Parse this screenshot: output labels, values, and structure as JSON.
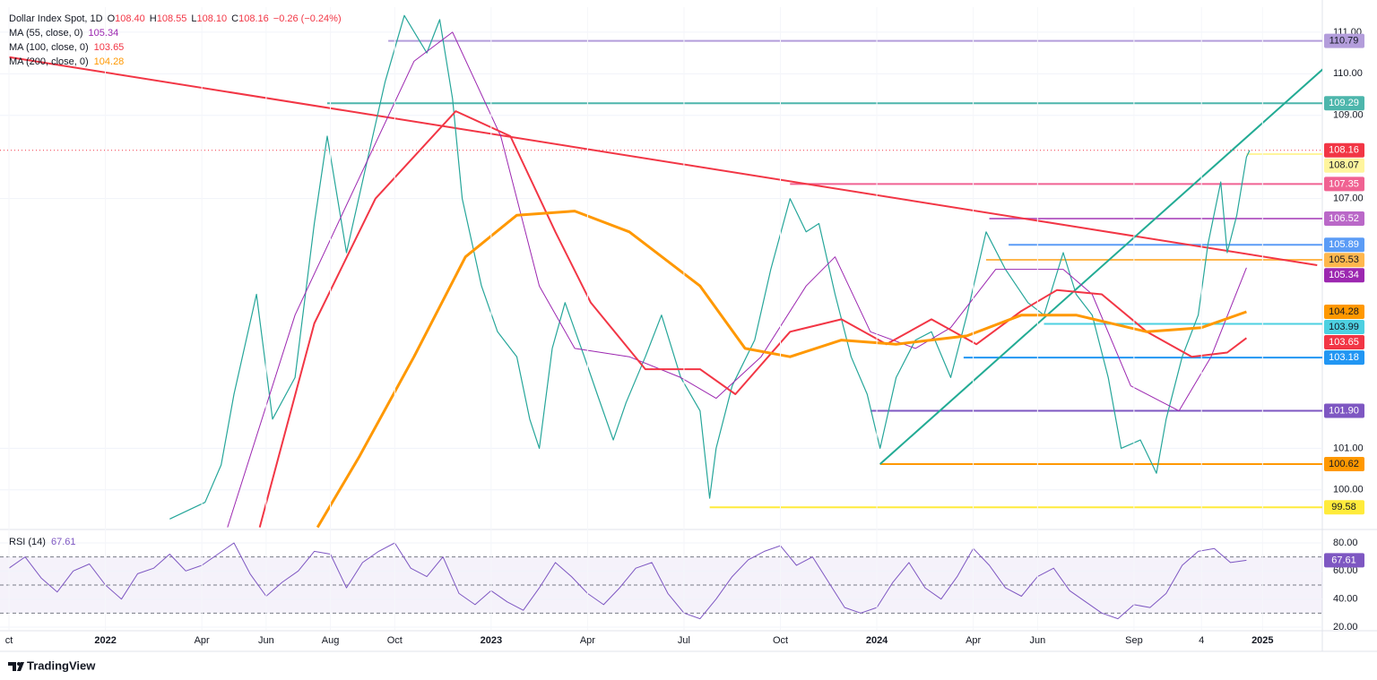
{
  "chart_data": [
    {
      "type": "line",
      "title": "Dollar Index Spot, 1D",
      "ohlc": [
        "O",
        "108.40",
        "H",
        "108.55",
        "L",
        "108.10",
        "C",
        "108.16",
        "−0.26 (−0.24%)"
      ],
      "xlim": [
        -0.28,
        40.86
      ],
      "ylim": [
        99.07,
        111.6
      ],
      "yticks": [
        {
          "value": 111,
          "label": "111.00"
        },
        {
          "value": 110,
          "label": "110.00"
        },
        {
          "value": 109,
          "label": "109.00"
        },
        {
          "value": 107,
          "label": "107.00"
        },
        {
          "value": 101,
          "label": "101.00"
        },
        {
          "value": 100,
          "label": "100.00"
        }
      ],
      "series": [
        {
          "name": "Dollar Index Spot",
          "color": "#26a69a",
          "label": "108.16",
          "label_color": "#f23645",
          "x": [
            5.0,
            6.1,
            6.6,
            7.0,
            7.7,
            8.2,
            8.9,
            9.5,
            9.9,
            10.5,
            11.2,
            11.7,
            12.3,
            13.0,
            13.4,
            13.8,
            14.1,
            14.7,
            15.2,
            15.8,
            16.2,
            16.5,
            16.9,
            17.3,
            17.9,
            18.3,
            18.8,
            19.2,
            19.8,
            20.3,
            20.9,
            21.5,
            21.8,
            22.0,
            22.5,
            23.2,
            23.7,
            24.3,
            24.8,
            25.2,
            25.7,
            26.2,
            26.7,
            27.1,
            27.6,
            28.2,
            28.7,
            29.3,
            29.8,
            30.4,
            31.0,
            31.7,
            32.2,
            32.8,
            33.2,
            33.7,
            34.2,
            34.6,
            35.2,
            35.7,
            36.0,
            36.5,
            37.0,
            37.3,
            37.7,
            37.9,
            38.2,
            38.5,
            38.6
          ],
          "values": [
            99.3,
            99.7,
            100.6,
            102.3,
            104.7,
            101.7,
            102.7,
            106.4,
            108.5,
            105.7,
            108.1,
            109.8,
            111.4,
            110.5,
            111.3,
            109.4,
            107.0,
            104.9,
            103.8,
            103.2,
            101.7,
            101.0,
            103.4,
            104.5,
            103.2,
            102.3,
            101.2,
            102.1,
            103.2,
            104.2,
            102.7,
            101.9,
            99.8,
            101.0,
            102.5,
            103.6,
            105.3,
            107.0,
            106.2,
            106.4,
            104.7,
            103.2,
            102.3,
            101.0,
            102.7,
            103.6,
            103.8,
            102.7,
            104.2,
            106.2,
            105.3,
            104.5,
            104.2,
            105.7,
            104.7,
            104.2,
            102.7,
            101.0,
            101.2,
            100.4,
            101.7,
            103.2,
            104.2,
            105.9,
            107.4,
            105.7,
            106.6,
            108.0,
            108.16
          ]
        },
        {
          "name": "MA (55, close, 0)",
          "color": "#9c27b0",
          "label": "105.34",
          "width": 1,
          "x": [
            6.8,
            8.9,
            10.9,
            12.6,
            13.8,
            15.3,
            16.5,
            17.6,
            19.3,
            20.9,
            22.0,
            23.4,
            24.8,
            25.7,
            26.8,
            28.2,
            29.3,
            30.7,
            32.8,
            33.7,
            34.9,
            36.4,
            37.4,
            38.5
          ],
          "values": [
            99.1,
            104.2,
            107.5,
            110.3,
            111.0,
            108.5,
            104.9,
            103.4,
            103.2,
            102.7,
            102.2,
            103.2,
            104.9,
            105.6,
            103.8,
            103.4,
            103.9,
            105.3,
            105.3,
            104.7,
            102.5,
            101.9,
            103.2,
            105.34
          ]
        },
        {
          "name": "MA (100, close, 0)",
          "color": "#f23645",
          "label": "103.65",
          "width": 2,
          "x": [
            7.8,
            9.5,
            11.4,
            13.9,
            15.6,
            17.0,
            18.1,
            19.8,
            21.5,
            22.6,
            24.3,
            25.9,
            27.3,
            28.7,
            30.1,
            31.5,
            32.6,
            34.0,
            35.4,
            36.8,
            37.9,
            38.5
          ],
          "values": [
            99.1,
            104.0,
            107.0,
            109.1,
            108.5,
            106.2,
            104.5,
            102.9,
            102.9,
            102.3,
            103.8,
            104.1,
            103.5,
            104.1,
            103.5,
            104.3,
            104.8,
            104.7,
            103.8,
            103.2,
            103.3,
            103.65
          ]
        },
        {
          "name": "MA (200, close, 0)",
          "color": "#ff9800",
          "label": "104.28",
          "width": 3,
          "x": [
            9.6,
            10.9,
            12.6,
            14.2,
            15.8,
            17.6,
            19.3,
            21.5,
            22.9,
            24.3,
            25.9,
            27.6,
            29.8,
            31.5,
            33.2,
            35.4,
            37.1,
            38.5
          ],
          "values": [
            99.1,
            100.8,
            103.2,
            105.6,
            106.6,
            106.7,
            106.2,
            104.9,
            103.4,
            103.2,
            103.6,
            103.5,
            103.7,
            104.2,
            104.2,
            103.8,
            103.9,
            104.28
          ]
        }
      ],
      "trendlines": [
        {
          "color": "#f23645",
          "x": [
            0,
            40.7
          ],
          "values": [
            110.4,
            105.4
          ]
        },
        {
          "color": "#22ab94",
          "x": [
            27.1,
            40.95
          ],
          "values": [
            100.62,
            110.16
          ]
        }
      ],
      "levels": [
        {
          "value": 110.79,
          "label": "110.79",
          "color": "#b39ddb",
          "start": 11.8
        },
        {
          "value": 109.29,
          "label": "109.29",
          "color": "#4db6ac",
          "start": 9.9
        },
        {
          "value": 108.07,
          "label": "108.07",
          "color": "#fff59d",
          "start": 38.5
        },
        {
          "value": 107.35,
          "label": "107.35",
          "color": "#f06292",
          "start": 24.3
        },
        {
          "value": 106.52,
          "label": "106.52",
          "color": "#ba68c8",
          "start": 30.5
        },
        {
          "value": 105.89,
          "label": "105.89",
          "color": "#5b9cf6",
          "start": 31.1
        },
        {
          "value": 105.53,
          "label": "105.53",
          "color": "#ffb74d",
          "start": 30.4
        },
        {
          "value": 103.99,
          "label": "103.99",
          "color": "#4dd0e1",
          "start": 32.2
        },
        {
          "value": 103.18,
          "label": "103.18",
          "color": "#2196f3",
          "start": 29.7
        },
        {
          "value": 101.9,
          "label": "101.90",
          "color": "#7e57c2",
          "start": 26.8
        },
        {
          "value": 100.62,
          "label": "100.62",
          "color": "#ff9800",
          "start": 27.1
        },
        {
          "value": 99.58,
          "label": "99.58",
          "color": "#ffeb3b",
          "start": 21.8
        }
      ],
      "xticks": [
        {
          "value": 0,
          "label": "ct"
        },
        {
          "value": 3,
          "label": "2022"
        },
        {
          "value": 6,
          "label": "Apr"
        },
        {
          "value": 8,
          "label": "Jun"
        },
        {
          "value": 10,
          "label": "Aug"
        },
        {
          "value": 12,
          "label": "Oct"
        },
        {
          "value": 15,
          "label": "2023"
        },
        {
          "value": 18,
          "label": "Apr"
        },
        {
          "value": 21,
          "label": "Jul"
        },
        {
          "value": 24,
          "label": "Oct"
        },
        {
          "value": 27,
          "label": "2024"
        },
        {
          "value": 30,
          "label": "Apr"
        },
        {
          "value": 32,
          "label": "Jun"
        },
        {
          "value": 35,
          "label": "Sep"
        },
        {
          "value": 37.1,
          "label": "4"
        },
        {
          "value": 39,
          "label": "2025"
        }
      ]
    },
    {
      "type": "line",
      "xlim": [
        -0.28,
        40.86
      ],
      "ylim": [
        18.1,
        88.9
      ],
      "yticks": [
        {
          "value": 80,
          "label": "80.00"
        },
        {
          "value": 60,
          "label": "60.00"
        },
        {
          "value": 40,
          "label": "40.00"
        },
        {
          "value": 20,
          "label": "20.00"
        }
      ],
      "levels_dashed": [
        70,
        50,
        30
      ],
      "band": [
        30,
        70
      ],
      "series": [
        {
          "name": "RSI (14)",
          "color": "#7e57c2",
          "label": "67.61",
          "width": 1,
          "x": [
            0,
            0.5,
            1,
            1.5,
            2,
            2.5,
            3,
            3.5,
            4,
            4.5,
            5,
            5.5,
            6,
            6.5,
            7,
            7.5,
            8,
            8.5,
            9,
            9.5,
            10,
            10.5,
            11,
            11.5,
            12,
            12.5,
            13,
            13.5,
            14,
            14.5,
            15,
            15.5,
            16,
            16.5,
            17,
            17.5,
            18,
            18.5,
            19,
            19.5,
            20,
            20.5,
            21,
            21.5,
            22,
            22.5,
            23,
            23.5,
            24,
            24.5,
            25,
            25.5,
            26,
            26.5,
            27,
            27.5,
            28,
            28.5,
            29,
            29.5,
            30,
            30.5,
            31,
            31.5,
            32,
            32.5,
            33,
            33.5,
            34,
            34.5,
            35,
            35.5,
            36,
            36.5,
            37,
            37.5,
            38,
            38.5
          ],
          "values": [
            62,
            70,
            55,
            45,
            60,
            65,
            50,
            40,
            58,
            62,
            72,
            60,
            64,
            72,
            80,
            58,
            42,
            52,
            60,
            74,
            72,
            48,
            66,
            74,
            80,
            62,
            56,
            70,
            44,
            36,
            46,
            38,
            32,
            48,
            66,
            56,
            44,
            36,
            48,
            62,
            66,
            44,
            30,
            26,
            40,
            56,
            68,
            74,
            78,
            64,
            70,
            52,
            34,
            30,
            34,
            52,
            66,
            48,
            40,
            56,
            76,
            64,
            48,
            42,
            56,
            62,
            46,
            38,
            30,
            26,
            36,
            34,
            44,
            64,
            74,
            76,
            66,
            67.61
          ]
        }
      ]
    }
  ],
  "footer": {
    "brand": "TradingView"
  }
}
